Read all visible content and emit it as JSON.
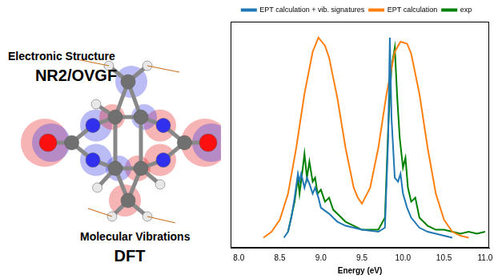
{
  "left_panel": {
    "labels": [
      "Electronic Structure",
      "NR2/OVGF",
      "Molecular Vibrations",
      "DFT"
    ]
  },
  "chart_data": {
    "type": "line",
    "x_label": "Energy (eV)",
    "xlim": [
      7.9,
      11.05
    ],
    "xticks": [
      {
        "value": 8,
        "label": "8.0"
      },
      8.5,
      {
        "value": 9,
        "label": "9.0"
      },
      9.5,
      {
        "value": 10,
        "label": "10.0"
      },
      10.5,
      {
        "value": 11,
        "label": "11.0"
      }
    ],
    "ylim": [
      -0.05,
      1.08
    ],
    "tick_labels": "x",
    "grid": false,
    "legend": "top",
    "series": [
      {
        "name": "EPT calculation + vib. signatures",
        "color": "#1f77b4",
        "x": [
          8.55,
          8.6,
          8.64,
          8.68,
          8.72,
          8.74,
          8.76,
          8.8,
          8.83,
          8.86,
          8.9,
          8.93,
          8.97,
          9.0,
          9.1,
          9.2,
          9.3,
          9.5,
          9.7,
          9.78,
          9.82,
          9.84,
          9.86,
          9.9,
          9.94,
          9.97,
          10.0,
          10.05,
          10.1,
          10.2,
          10.3,
          10.5,
          10.6
        ],
        "values": [
          0.0,
          0.03,
          0.1,
          0.2,
          0.32,
          0.28,
          0.32,
          0.25,
          0.3,
          0.27,
          0.22,
          0.25,
          0.2,
          0.15,
          0.12,
          0.08,
          0.06,
          0.04,
          0.03,
          0.05,
          0.5,
          1.0,
          0.6,
          0.3,
          0.28,
          0.32,
          0.22,
          0.15,
          0.1,
          0.05,
          0.03,
          0.01,
          0.0
        ]
      },
      {
        "name": "EPT calculation",
        "color": "#ff7f0e",
        "x": [
          8.3,
          8.4,
          8.5,
          8.6,
          8.7,
          8.8,
          8.9,
          8.97,
          9.05,
          9.1,
          9.2,
          9.3,
          9.4,
          9.45,
          9.5,
          9.6,
          9.7,
          9.8,
          9.9,
          9.97,
          10.05,
          10.1,
          10.2,
          10.3,
          10.4,
          10.5,
          10.6,
          10.7,
          10.8
        ],
        "values": [
          0.0,
          0.03,
          0.09,
          0.22,
          0.45,
          0.72,
          0.93,
          1.0,
          0.96,
          0.9,
          0.7,
          0.45,
          0.25,
          0.2,
          0.17,
          0.25,
          0.45,
          0.72,
          0.93,
          0.98,
          0.97,
          0.92,
          0.72,
          0.45,
          0.22,
          0.09,
          0.03,
          0.01,
          0.0
        ]
      },
      {
        "name": "exp",
        "color": "#008000",
        "x": [
          8.6,
          8.68,
          8.72,
          8.74,
          8.78,
          8.8,
          8.83,
          8.86,
          8.9,
          8.93,
          8.96,
          9.0,
          9.05,
          9.1,
          9.15,
          9.2,
          9.3,
          9.5,
          9.7,
          9.78,
          9.82,
          9.86,
          9.9,
          9.93,
          9.96,
          10.0,
          10.03,
          10.06,
          10.1,
          10.15,
          10.2,
          10.3,
          10.4,
          10.5,
          10.6,
          10.7,
          10.8,
          10.9,
          11.0
        ],
        "values": [
          0.03,
          0.18,
          0.3,
          0.22,
          0.35,
          0.42,
          0.3,
          0.38,
          0.28,
          0.3,
          0.22,
          0.24,
          0.18,
          0.2,
          0.14,
          0.12,
          0.08,
          0.04,
          0.04,
          0.1,
          0.55,
          0.85,
          0.95,
          0.7,
          0.5,
          0.35,
          0.4,
          0.25,
          0.18,
          0.2,
          0.1,
          0.06,
          0.04,
          0.04,
          0.03,
          0.02,
          0.03,
          0.02,
          0.03
        ]
      }
    ]
  }
}
